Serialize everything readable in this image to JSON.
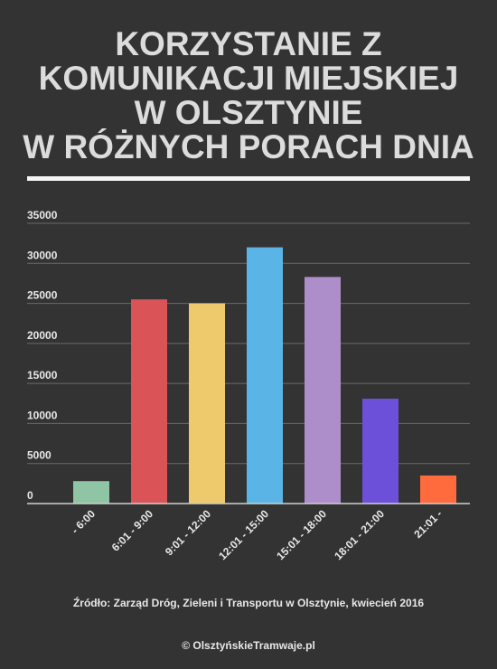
{
  "header": {
    "title_lines": [
      "KORZYSTANIE Z",
      "KOMUNIKACJI MIEJSKIEJ",
      "W OLSZTYNIE",
      "W RÓŻNYCH PORACH DNIA"
    ]
  },
  "chart_data": {
    "type": "bar",
    "title": "KORZYSTANIE Z KOMUNIKACJI MIEJSKIEJ W OLSZTYNIE W RÓŻNYCH PORACH DNIA",
    "xlabel": "",
    "ylabel": "",
    "categories": [
      "- 6:00",
      "6:01 - 9:00",
      "9:01 - 12:00",
      "12:01 - 15:00",
      "15:01 - 18:00",
      "18:01 - 21:00",
      "21:01 -"
    ],
    "values": [
      2800,
      25500,
      25000,
      32000,
      28300,
      13100,
      3500
    ],
    "colors": [
      "#8fc5a4",
      "#da5357",
      "#efca6c",
      "#5ab5e6",
      "#ad8ecb",
      "#6c50d9",
      "#ff6b3d"
    ],
    "ylim": [
      0,
      35000
    ],
    "yticks": [
      0,
      5000,
      10000,
      15000,
      20000,
      25000,
      30000,
      35000
    ],
    "ytick_labels": [
      "0",
      "5000",
      "10000",
      "15000",
      "20000",
      "25000",
      "30000",
      "35000"
    ],
    "grid": true,
    "legend": "none"
  },
  "footer": {
    "source": "Źródło: Zarząd Dróg, Zieleni i Transportu w Olsztynie, kwiecień 2016",
    "copyright": "© OlsztyńskieTramwaje.pl"
  }
}
